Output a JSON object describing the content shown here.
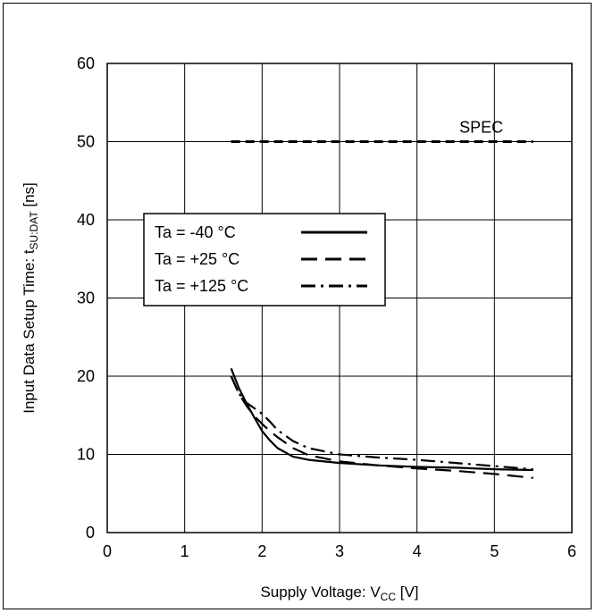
{
  "chart_data": {
    "type": "line",
    "xlabel": {
      "main": "Supply Voltage: V",
      "sub": "CC",
      "unit": " [V]"
    },
    "ylabel": {
      "main": "Input Data Setup Time: t",
      "sub": "SU:DAT",
      "unit": " [ns]"
    },
    "xlim": [
      0,
      6
    ],
    "ylim": [
      0,
      60
    ],
    "x_ticks": [
      0,
      1,
      2,
      3,
      4,
      5,
      6
    ],
    "y_ticks": [
      0,
      10,
      20,
      30,
      40,
      50,
      60
    ],
    "grid": true,
    "legend_position": "upper-left",
    "series": [
      {
        "name": "Ta = -40 °C",
        "style": "solid",
        "x": [
          1.6,
          1.7,
          1.8,
          1.9,
          2.0,
          2.1,
          2.2,
          2.4,
          2.6,
          3.0,
          3.5,
          4.0,
          4.5,
          5.0,
          5.5
        ],
        "y": [
          21.0,
          18.5,
          16.5,
          14.7,
          13.0,
          11.8,
          10.8,
          9.7,
          9.3,
          8.9,
          8.6,
          8.4,
          8.3,
          8.1,
          8.0
        ]
      },
      {
        "name": "Ta = +25 °C",
        "style": "dashed",
        "x": [
          1.6,
          1.7,
          1.8,
          1.9,
          2.0,
          2.1,
          2.2,
          2.4,
          2.6,
          3.0,
          3.5,
          4.0,
          4.5,
          5.0,
          5.5
        ],
        "y": [
          20.0,
          17.8,
          16.2,
          14.9,
          13.9,
          13.0,
          12.2,
          10.8,
          9.9,
          9.1,
          8.6,
          8.2,
          7.9,
          7.5,
          7.0
        ]
      },
      {
        "name": "Ta = +125 °C",
        "style": "dash-dot",
        "x": [
          1.6,
          1.7,
          1.8,
          1.9,
          2.0,
          2.1,
          2.2,
          2.4,
          2.6,
          3.0,
          3.5,
          4.0,
          4.5,
          5.0,
          5.5
        ],
        "y": [
          20.0,
          17.8,
          16.6,
          15.9,
          15.2,
          14.2,
          13.1,
          11.7,
          10.8,
          10.0,
          9.6,
          9.3,
          8.9,
          8.5,
          8.1
        ]
      }
    ],
    "reference_lines": [
      {
        "label": "SPEC",
        "style": "dashed",
        "x": [
          1.6,
          5.5
        ],
        "y": [
          50,
          50
        ]
      }
    ]
  },
  "colors": {
    "line": "#000000",
    "grid": "#000000",
    "background": "#ffffff"
  }
}
